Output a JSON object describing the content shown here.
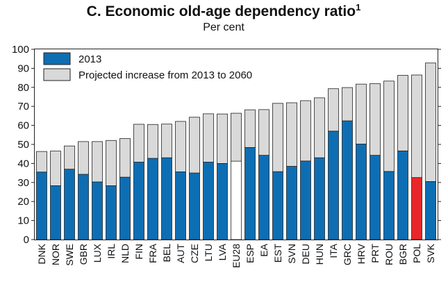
{
  "chart_data": {
    "type": "bar",
    "stacked": true,
    "title": "C. Economic old-age dependency ratio",
    "title_footnote": "1",
    "subtitle": "Per cent",
    "ylim": [
      0,
      100
    ],
    "yticks": [
      0,
      10,
      20,
      30,
      40,
      50,
      60,
      70,
      80,
      90,
      100
    ],
    "grid": false,
    "legend_position": "top-left",
    "categories": [
      "DNK",
      "NOR",
      "SWE",
      "GBR",
      "LUX",
      "IRL",
      "NLD",
      "FIN",
      "FRA",
      "BEL",
      "AUT",
      "CZE",
      "LTU",
      "LVA",
      "EU28",
      "ESP",
      "EA",
      "EST",
      "SVN",
      "DEU",
      "HUN",
      "ITA",
      "GRC",
      "HRV",
      "PRT",
      "ROU",
      "BGR",
      "POL",
      "SVK"
    ],
    "series": [
      {
        "name": "2013",
        "color": "#0e6eb4",
        "values": [
          35.5,
          28.3,
          37,
          34.3,
          30.3,
          28.3,
          32.8,
          40.7,
          42.7,
          43,
          35.6,
          35,
          40.7,
          40,
          41.2,
          48.4,
          44.3,
          35.7,
          38.5,
          41.3,
          43,
          57,
          62.4,
          50.2,
          44.3,
          35.8,
          46.6,
          32.6,
          30.5
        ]
      },
      {
        "name": "Projected increase from 2013 to 2060",
        "color": "#d9d9d9",
        "values": [
          10.8,
          18.2,
          12.2,
          17.2,
          21.2,
          23.8,
          20.3,
          19.9,
          17.8,
          17.7,
          26.5,
          29.3,
          25.4,
          26,
          25.2,
          19.8,
          24,
          35.9,
          33.4,
          31.7,
          31.5,
          22.3,
          17.5,
          31.5,
          37.7,
          47.5,
          39.7,
          53.9,
          62.3
        ]
      }
    ],
    "highlight": {
      "EU28": "#ffffff",
      "POL": "#e8272a"
    }
  }
}
